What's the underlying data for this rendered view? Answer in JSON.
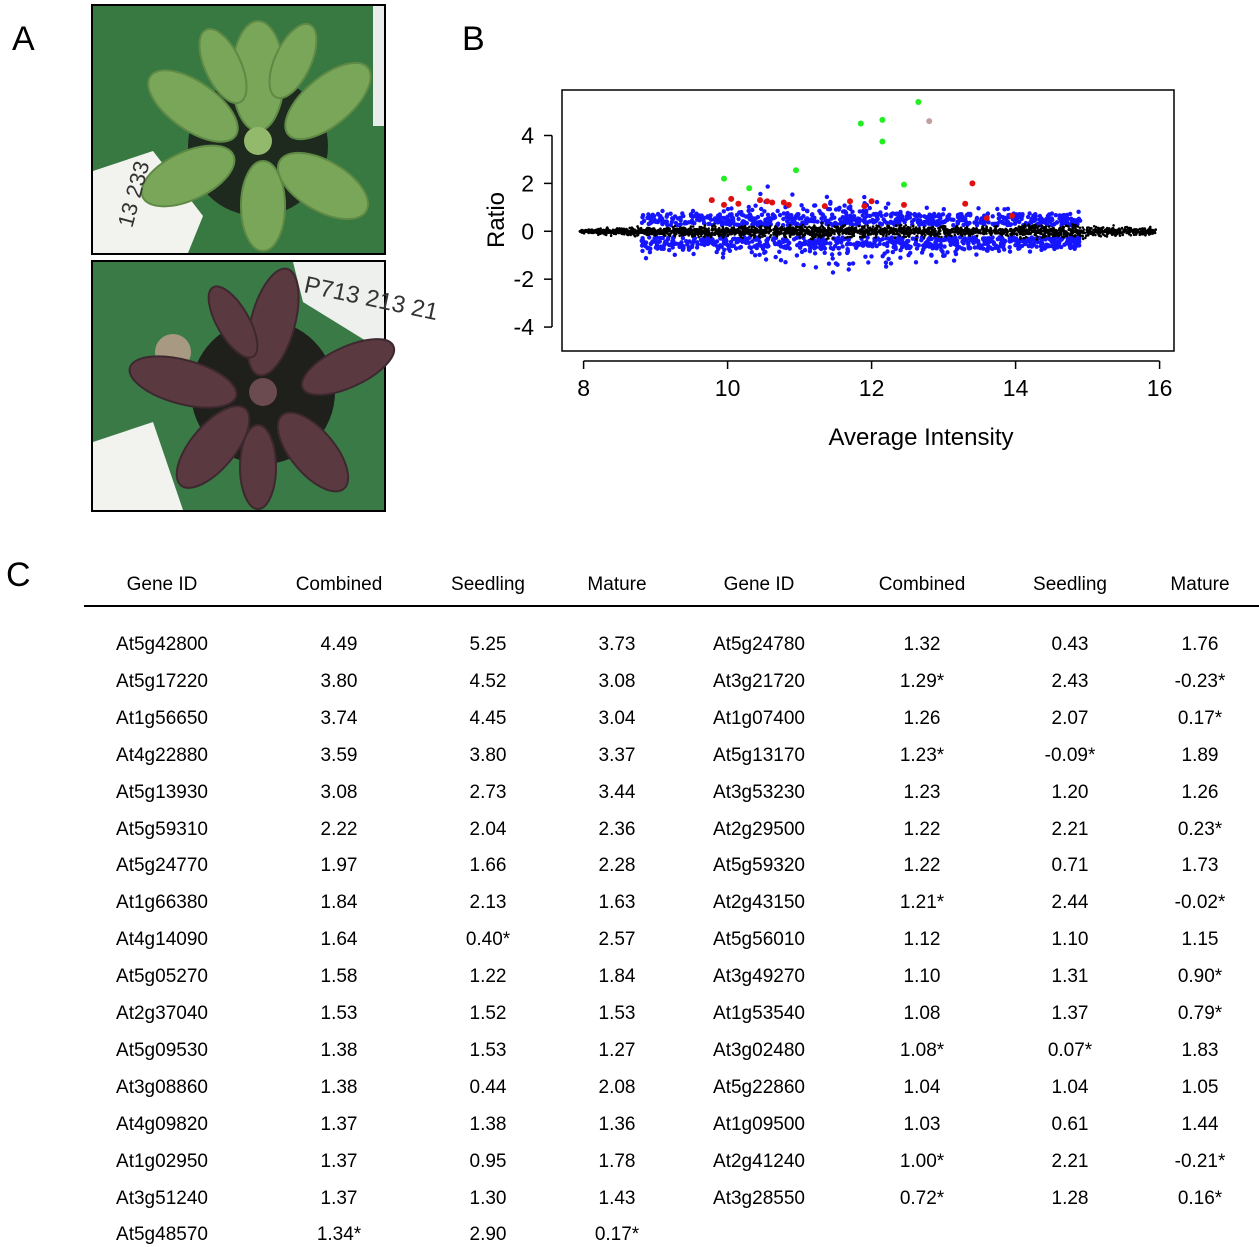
{
  "panels": {
    "a": "A",
    "b": "B",
    "c": "C"
  },
  "photo_labels": {
    "top": "13 233",
    "bottom": "P713 213 21"
  },
  "chart_data": {
    "type": "scatter",
    "title": "",
    "xlabel": "Average Intensity",
    "ylabel": "Ratio",
    "xlim": [
      7.7,
      16.2
    ],
    "ylim": [
      -5.0,
      5.9
    ],
    "xticks": [
      "8",
      "10",
      "12",
      "14",
      "16"
    ],
    "yticks": [
      "4",
      "2",
      "0",
      "-2",
      "-4"
    ],
    "grid": false,
    "series": [
      {
        "color": "#000000",
        "desc": "dense cloud of all spots centered at ratio 0"
      },
      {
        "color": "#1515ff",
        "desc": "spots with |ratio| above background"
      },
      {
        "color": "#e01010",
        "points": [
          [
            9.78,
            1.3
          ],
          [
            9.95,
            1.1
          ],
          [
            10.05,
            1.35
          ],
          [
            10.15,
            1.15
          ],
          [
            10.45,
            1.3
          ],
          [
            10.55,
            1.25
          ],
          [
            10.78,
            1.2
          ],
          [
            10.85,
            1.1
          ],
          [
            11.7,
            1.25
          ],
          [
            11.9,
            1.05
          ],
          [
            12.0,
            1.25
          ],
          [
            12.45,
            1.1
          ],
          [
            13.4,
            2.0
          ],
          [
            13.3,
            1.15
          ],
          [
            13.6,
            0.55
          ],
          [
            13.95,
            0.65
          ],
          [
            10.62,
            1.2
          ],
          [
            11.35,
            1.05
          ]
        ]
      },
      {
        "color": "#22ee22",
        "points": [
          [
            9.95,
            2.2
          ],
          [
            10.3,
            1.8
          ],
          [
            10.95,
            2.55
          ],
          [
            11.85,
            4.5
          ],
          [
            12.15,
            4.65
          ],
          [
            12.15,
            3.75
          ],
          [
            12.45,
            1.95
          ],
          [
            12.65,
            5.4
          ]
        ]
      },
      {
        "color": "#c0a0a0",
        "points": [
          [
            12.8,
            4.6
          ]
        ]
      }
    ]
  },
  "table": {
    "headers": [
      "Gene ID",
      "Combined",
      "Seedling",
      "Mature",
      "Gene ID",
      "Combined",
      "Seedling",
      "Mature"
    ],
    "rows": [
      [
        "At5g42800",
        "4.49",
        "5.25",
        "3.73",
        "At5g24780",
        "1.32",
        "0.43",
        "1.76"
      ],
      [
        "At5g17220",
        "3.80",
        "4.52",
        "3.08",
        "At3g21720",
        "1.29*",
        "2.43",
        "-0.23*"
      ],
      [
        "At1g56650",
        "3.74",
        "4.45",
        "3.04",
        "At1g07400",
        "1.26",
        "2.07",
        "0.17*"
      ],
      [
        "At4g22880",
        "3.59",
        "3.80",
        "3.37",
        "At5g13170",
        "1.23*",
        "-0.09*",
        "1.89"
      ],
      [
        "At5g13930",
        "3.08",
        "2.73",
        "3.44",
        "At3g53230",
        "1.23",
        "1.20",
        "1.26"
      ],
      [
        "At5g59310",
        "2.22",
        "2.04",
        "2.36",
        "At2g29500",
        "1.22",
        "2.21",
        "0.23*"
      ],
      [
        "At5g24770",
        "1.97",
        "1.66",
        "2.28",
        "At5g59320",
        "1.22",
        "0.71",
        "1.73"
      ],
      [
        "At1g66380",
        "1.84",
        "2.13",
        "1.63",
        "At2g43150",
        "1.21*",
        "2.44",
        "-0.02*"
      ],
      [
        "At4g14090",
        "1.64",
        "0.40*",
        "2.57",
        "At5g56010",
        "1.12",
        "1.10",
        "1.15"
      ],
      [
        "At5g05270",
        "1.58",
        "1.22",
        "1.84",
        "At3g49270",
        "1.10",
        "1.31",
        "0.90*"
      ],
      [
        "At2g37040",
        "1.53",
        "1.52",
        "1.53",
        "At1g53540",
        "1.08",
        "1.37",
        "0.79*"
      ],
      [
        "At5g09530",
        "1.38",
        "1.53",
        "1.27",
        "At3g02480",
        "1.08*",
        "0.07*",
        "1.83"
      ],
      [
        "At3g08860",
        "1.38",
        "0.44",
        "2.08",
        "At5g22860",
        "1.04",
        "1.04",
        "1.05"
      ],
      [
        "At4g09820",
        "1.37",
        "1.38",
        "1.36",
        "At1g09500",
        "1.03",
        "0.61",
        "1.44"
      ],
      [
        "At1g02950",
        "1.37",
        "0.95",
        "1.78",
        "At2g41240",
        "1.00*",
        "2.21",
        "-0.21*"
      ],
      [
        "At3g51240",
        "1.37",
        "1.30",
        "1.43",
        "At3g28550",
        "0.72*",
        "1.28",
        "0.16*"
      ],
      [
        "At5g48570",
        "1.34*",
        "2.90",
        "0.17*",
        "",
        "",
        "",
        ""
      ]
    ]
  }
}
